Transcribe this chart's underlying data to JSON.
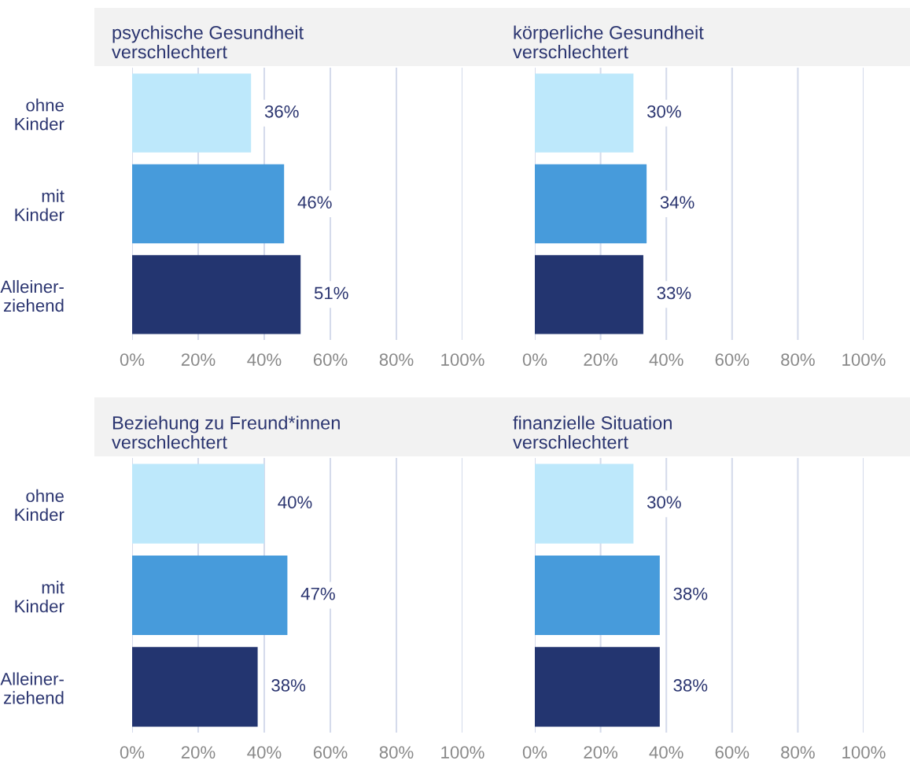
{
  "chart_data": [
    {
      "type": "bar",
      "orientation": "horizontal",
      "title": "psychische Gesundheit\nverschlechtert",
      "categories": [
        "ohne\nKinder",
        "mit\nKinder",
        "Alleiner-\nziehend"
      ],
      "values": [
        36,
        46,
        51
      ],
      "value_labels": [
        "36%",
        "46%",
        "51%"
      ],
      "colors": [
        "#bde8fb",
        "#479bdb",
        "#233570"
      ],
      "xlim": [
        0,
        100
      ],
      "xticks": [
        {
          "value": 0,
          "label": "0%"
        },
        {
          "value": 20,
          "label": "20%"
        },
        {
          "value": 40,
          "label": "40%"
        },
        {
          "value": 60,
          "label": "60%"
        },
        {
          "value": 80,
          "label": "80%"
        },
        {
          "value": 100,
          "label": "100%"
        }
      ],
      "grid": "x"
    },
    {
      "type": "bar",
      "orientation": "horizontal",
      "title": "körperliche Gesundheit\nverschlechtert",
      "categories": [
        null,
        null,
        null
      ],
      "values": [
        30,
        34,
        33
      ],
      "value_labels": [
        "30%",
        "34%",
        "33%"
      ],
      "colors": [
        "#bde8fb",
        "#479bdb",
        "#233570"
      ],
      "xlim": [
        0,
        100
      ],
      "xticks": [
        {
          "value": 0,
          "label": "0%"
        },
        {
          "value": 20,
          "label": "20%"
        },
        {
          "value": 40,
          "label": "40%"
        },
        {
          "value": 60,
          "label": "60%"
        },
        {
          "value": 80,
          "label": "80%"
        },
        {
          "value": 100,
          "label": "100%"
        }
      ],
      "grid": "x"
    },
    {
      "type": "bar",
      "orientation": "horizontal",
      "title": "Beziehung zu Freund*innen\nverschlechtert",
      "categories": [
        "ohne\nKinder",
        "mit\nKinder",
        "Alleiner-\nziehend"
      ],
      "values": [
        40,
        47,
        38
      ],
      "value_labels": [
        "40%",
        "47%",
        "38%"
      ],
      "colors": [
        "#bde8fb",
        "#479bdb",
        "#233570"
      ],
      "xlim": [
        0,
        100
      ],
      "xticks": [
        {
          "value": 0,
          "label": "0%"
        },
        {
          "value": 20,
          "label": "20%"
        },
        {
          "value": 40,
          "label": "40%"
        },
        {
          "value": 60,
          "label": "60%"
        },
        {
          "value": 80,
          "label": "80%"
        },
        {
          "value": 100,
          "label": "100%"
        }
      ],
      "grid": "x"
    },
    {
      "type": "bar",
      "orientation": "horizontal",
      "title": "finanzielle Situation\nverschlechtert",
      "categories": [
        null,
        null,
        null
      ],
      "values": [
        30,
        38,
        38
      ],
      "value_labels": [
        "30%",
        "38%",
        "38%"
      ],
      "colors": [
        "#bde8fb",
        "#479bdb",
        "#233570"
      ],
      "xlim": [
        0,
        100
      ],
      "xticks": [
        {
          "value": 0,
          "label": "0%"
        },
        {
          "value": 20,
          "label": "20%"
        },
        {
          "value": 40,
          "label": "40%"
        },
        {
          "value": 60,
          "label": "60%"
        },
        {
          "value": 80,
          "label": "80%"
        },
        {
          "value": 100,
          "label": "100%"
        }
      ],
      "grid": "x"
    }
  ]
}
